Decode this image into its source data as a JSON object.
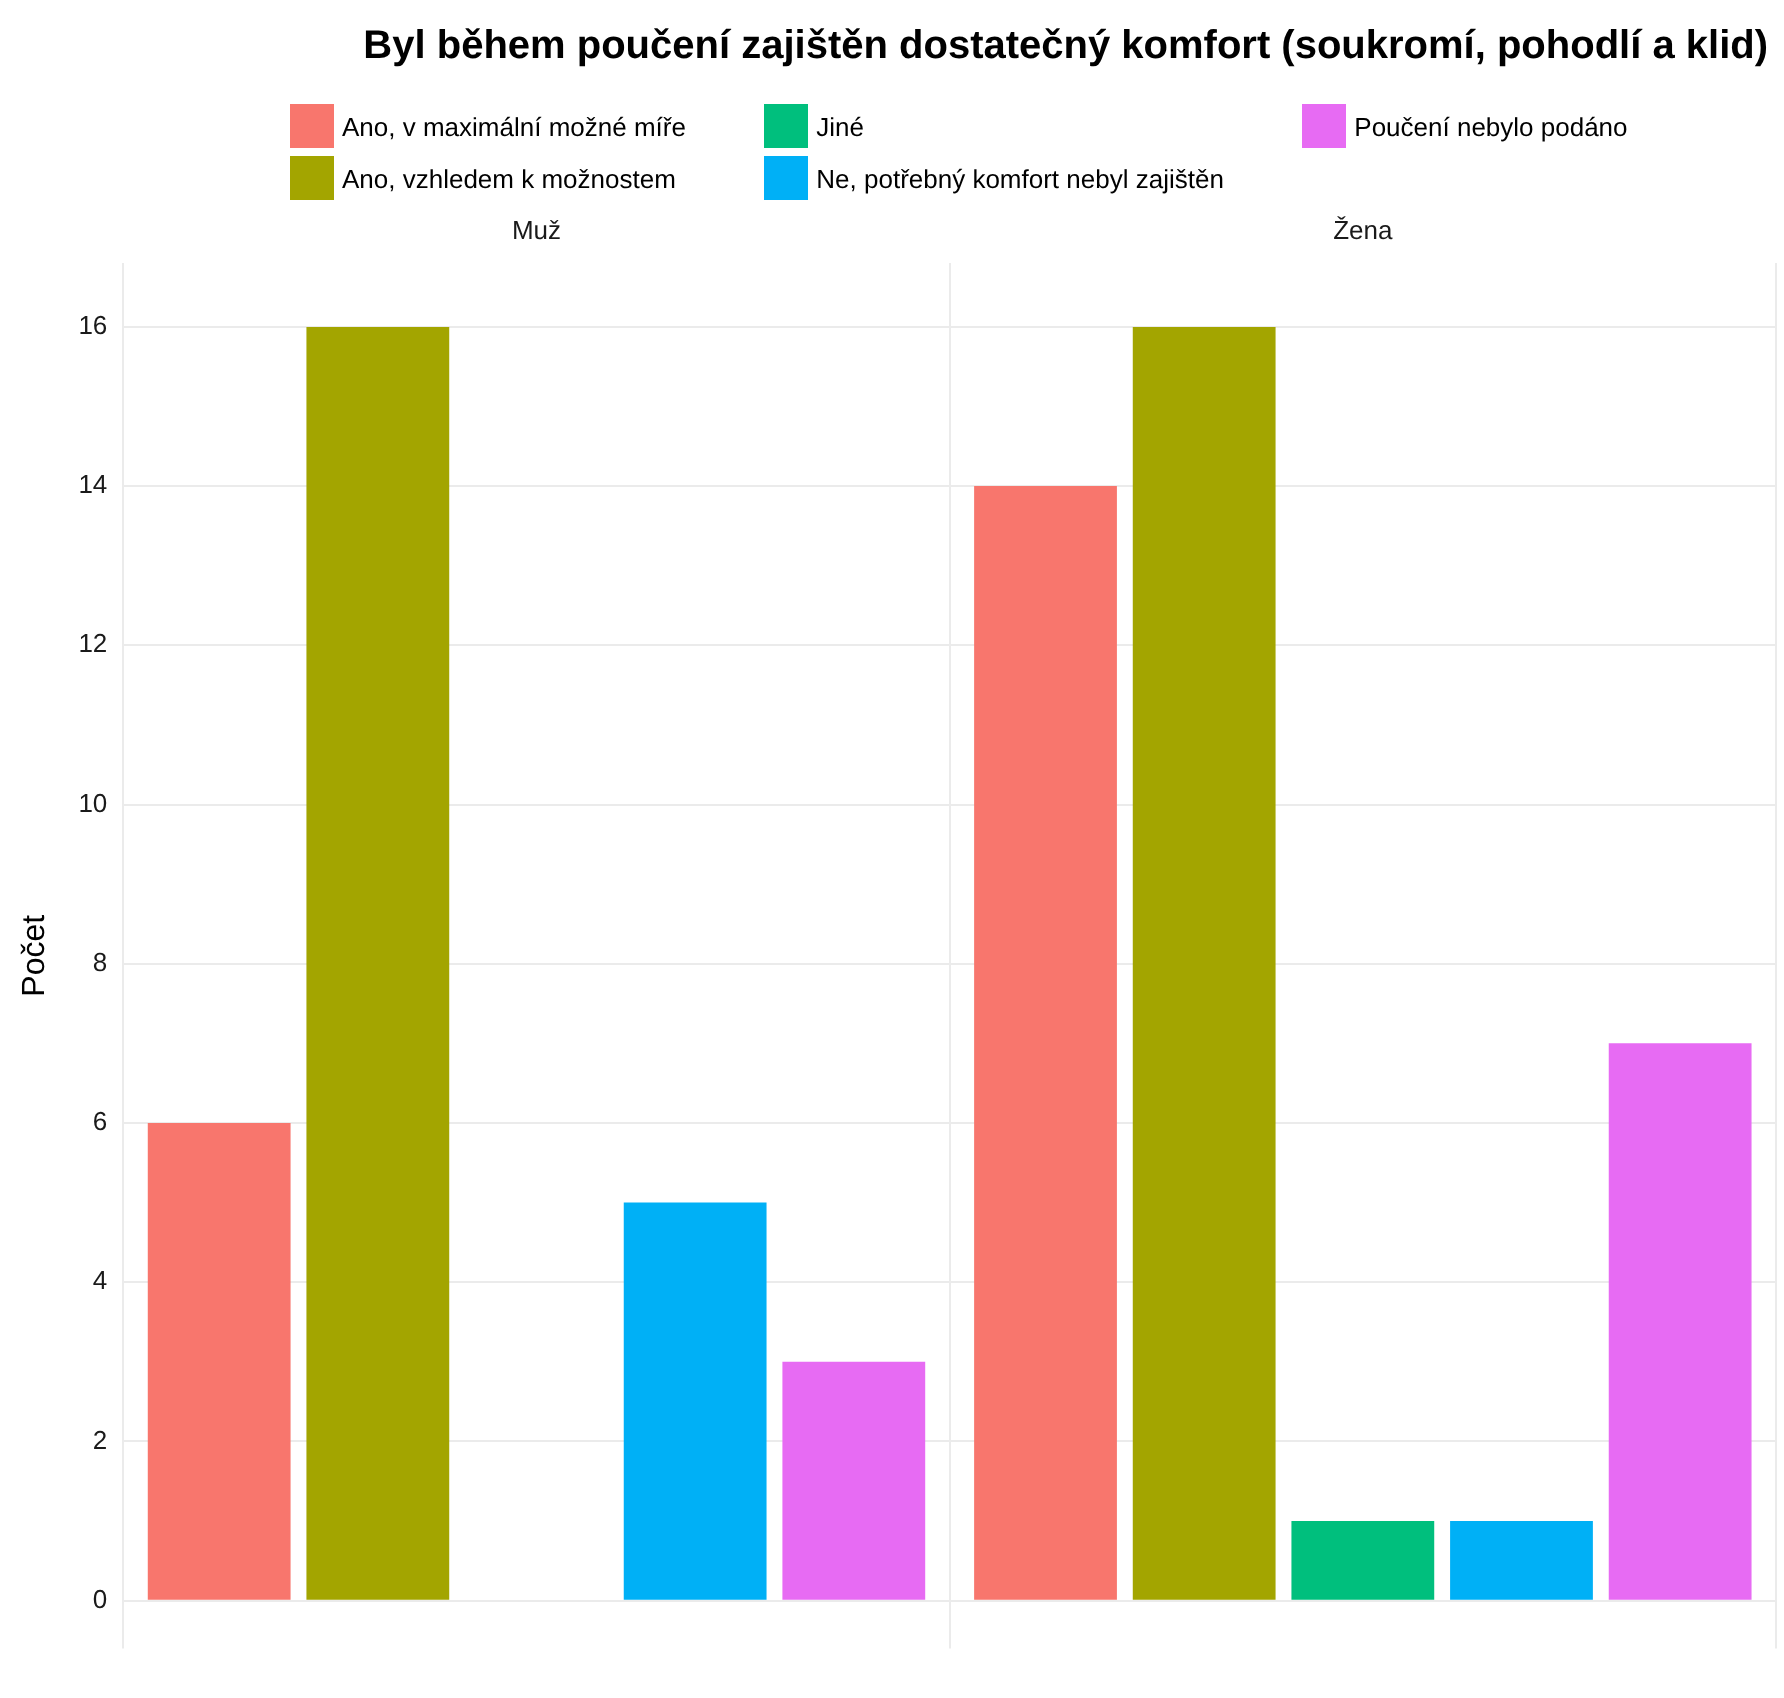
{
  "chart_data": {
    "type": "bar",
    "title": "Byl během poučení zajištěn dostatečný komfort (soukromí, pohodlí a klid)",
    "ylabel": "Počet",
    "categories": [
      "Muž",
      "Žena"
    ],
    "series": [
      {
        "name": "Ano, v maximální možné míře",
        "color": "#f8766d",
        "values": [
          6,
          14
        ]
      },
      {
        "name": "Ano, vzhledem k možnostem",
        "color": "#a3a500",
        "values": [
          16,
          16
        ]
      },
      {
        "name": "Jiné",
        "color": "#00bf7d",
        "values": [
          null,
          1
        ]
      },
      {
        "name": "Ne, potřebný komfort nebyl zajištěn",
        "color": "#00b0f6",
        "values": [
          5,
          1
        ]
      },
      {
        "name": "Poučení nebylo podáno",
        "color": "#e76bf3",
        "values": [
          3,
          7
        ]
      }
    ],
    "ylim": [
      -0.6,
      16.8
    ],
    "yticks": [
      0,
      2,
      4,
      6,
      8,
      10,
      12,
      14,
      16
    ],
    "grid": true,
    "legend": "top"
  }
}
